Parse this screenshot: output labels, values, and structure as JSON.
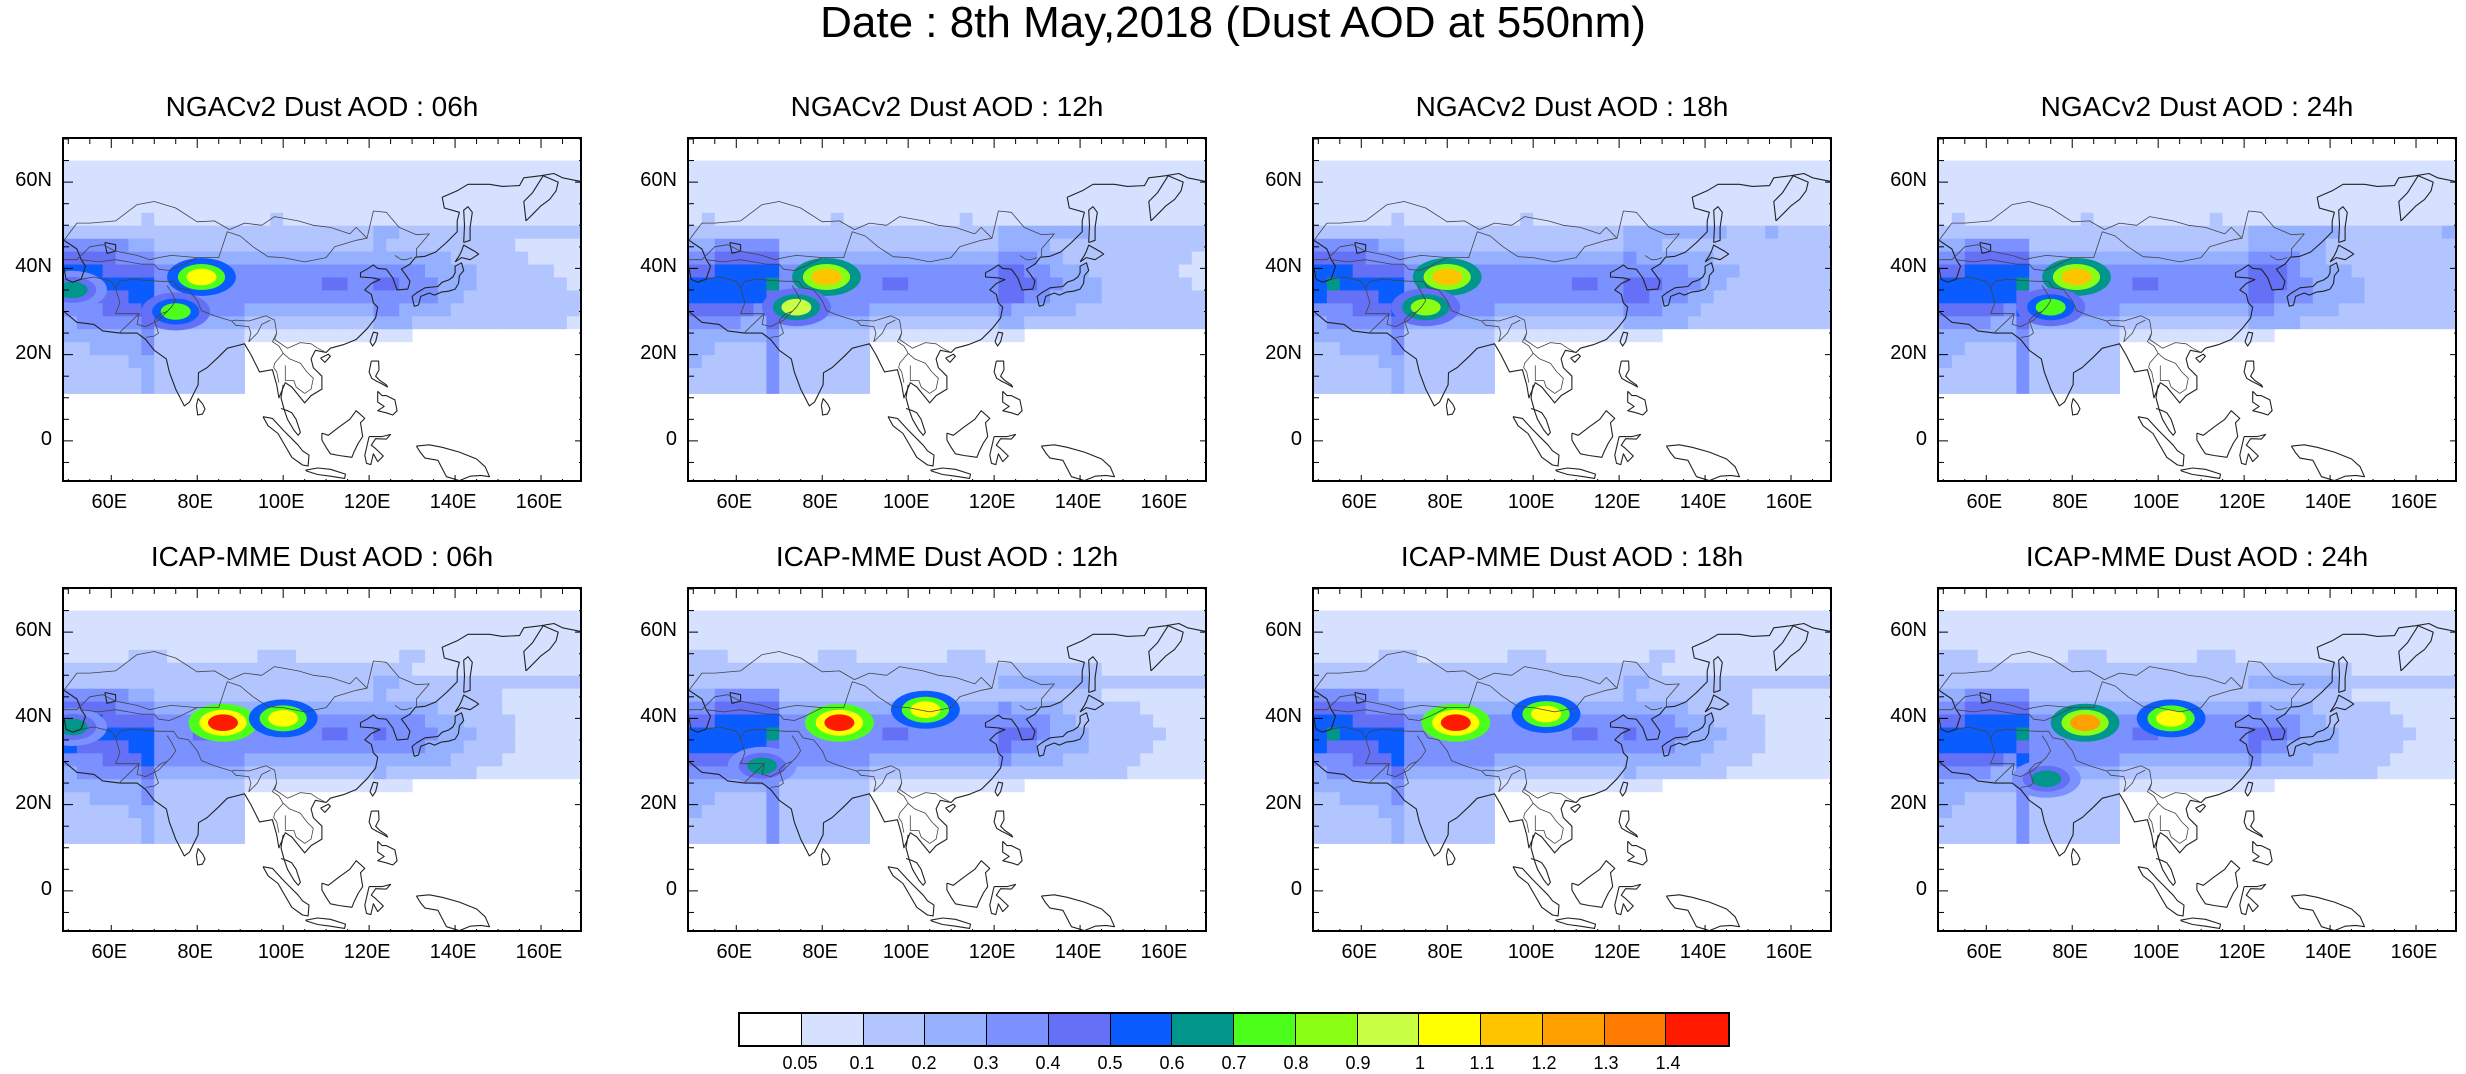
{
  "title": "Date : 8th May,2018 (Dust AOD at 550nm)",
  "panels": [
    {
      "title": "NGACv2 Dust AOD : 06h",
      "hotspots": [
        {
          "lon": 81,
          "lat": 38,
          "v": 1.0
        },
        {
          "lon": 75,
          "lat": 30,
          "v": 0.75
        },
        {
          "lon": 51,
          "lat": 35,
          "v": 0.6
        }
      ]
    },
    {
      "title": "NGACv2 Dust AOD : 12h",
      "hotspots": [
        {
          "lon": 81,
          "lat": 38,
          "v": 1.1
        },
        {
          "lon": 74,
          "lat": 31,
          "v": 0.9
        }
      ]
    },
    {
      "title": "NGACv2 Dust AOD : 18h",
      "hotspots": [
        {
          "lon": 80,
          "lat": 38,
          "v": 1.1
        },
        {
          "lon": 75,
          "lat": 31,
          "v": 0.8
        }
      ]
    },
    {
      "title": "NGACv2 Dust AOD : 24h",
      "hotspots": [
        {
          "lon": 81,
          "lat": 38,
          "v": 1.1
        },
        {
          "lon": 75,
          "lat": 31,
          "v": 0.75
        }
      ]
    },
    {
      "title": "ICAP-MME Dust AOD : 06h",
      "hotspots": [
        {
          "lon": 86,
          "lat": 39,
          "v": 1.4
        },
        {
          "lon": 100,
          "lat": 40,
          "v": 1.0
        },
        {
          "lon": 51,
          "lat": 38,
          "v": 0.6
        }
      ]
    },
    {
      "title": "ICAP-MME Dust AOD : 12h",
      "hotspots": [
        {
          "lon": 84,
          "lat": 39,
          "v": 1.4
        },
        {
          "lon": 104,
          "lat": 42,
          "v": 1.0
        },
        {
          "lon": 66,
          "lat": 29,
          "v": 0.65
        }
      ]
    },
    {
      "title": "ICAP-MME Dust AOD : 18h",
      "hotspots": [
        {
          "lon": 82,
          "lat": 39,
          "v": 1.4
        },
        {
          "lon": 103,
          "lat": 41,
          "v": 1.0
        }
      ]
    },
    {
      "title": "ICAP-MME Dust AOD : 24h",
      "hotspots": [
        {
          "lon": 83,
          "lat": 39,
          "v": 1.2
        },
        {
          "lon": 103,
          "lat": 40,
          "v": 1.0
        },
        {
          "lon": 74,
          "lat": 26,
          "v": 0.6
        }
      ]
    }
  ],
  "lat_ticks": [
    "60N",
    "40N",
    "20N",
    "0"
  ],
  "lon_ticks": [
    "60E",
    "80E",
    "100E",
    "120E",
    "140E",
    "160E"
  ],
  "colorbar": {
    "levels": [
      "0.05",
      "0.1",
      "0.2",
      "0.3",
      "0.4",
      "0.5",
      "0.6",
      "0.7",
      "0.8",
      "0.9",
      "1",
      "1.1",
      "1.2",
      "1.3",
      "1.4"
    ],
    "colors": [
      "#ffffff",
      "#d6e0ff",
      "#b3c5ff",
      "#94b0ff",
      "#7b91ff",
      "#6470f5",
      "#0a5cff",
      "#00968c",
      "#4cff1a",
      "#8aff14",
      "#c8ff45",
      "#ffff00",
      "#ffc400",
      "#ffa000",
      "#ff7a00",
      "#ff1a00"
    ]
  }
}
